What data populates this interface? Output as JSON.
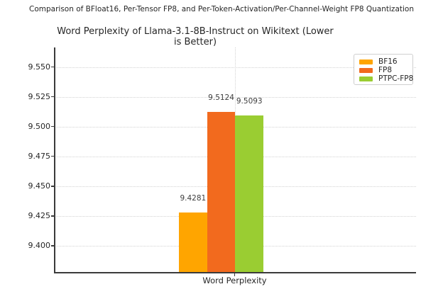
{
  "figure": {
    "suptitle": "Comparison of BFloat16, Per-Tensor FP8, and Per-Token-Activation/Per-Channel-Weight FP8 Quantization",
    "background": "#ffffff"
  },
  "chart_data": {
    "type": "bar",
    "title": "Word Perplexity of Llama-3.1-8B-Instruct on Wikitext (Lower is Better)",
    "categories": [
      "Word Perplexity"
    ],
    "series": [
      {
        "name": "BF16",
        "color": "#FFA500",
        "values": [
          9.4281
        ],
        "label": "9.4281"
      },
      {
        "name": "FP8",
        "color": "#F26A1E",
        "values": [
          9.5124
        ],
        "label": "9.5124"
      },
      {
        "name": "PTPC-FP8",
        "color": "#9ACD32",
        "values": [
          9.5093
        ],
        "label": "9.5093"
      }
    ],
    "xlabel": "",
    "ylabel": "",
    "ylim": [
      9.378,
      9.5665
    ],
    "yticks": [
      9.4,
      9.425,
      9.45,
      9.475,
      9.5,
      9.525,
      9.55
    ],
    "ytick_labels": [
      "9.400",
      "9.425",
      "9.450",
      "9.475",
      "9.500",
      "9.525",
      "9.550"
    ],
    "grid": true,
    "grid_style": "dotted",
    "grid_color": "#d2d2d2",
    "axis_color": "#3b3b3b",
    "text_color": "#262626",
    "legend_position": "upper right",
    "legend_entries": [
      "BF16",
      "FP8",
      "PTPC-FP8"
    ]
  }
}
